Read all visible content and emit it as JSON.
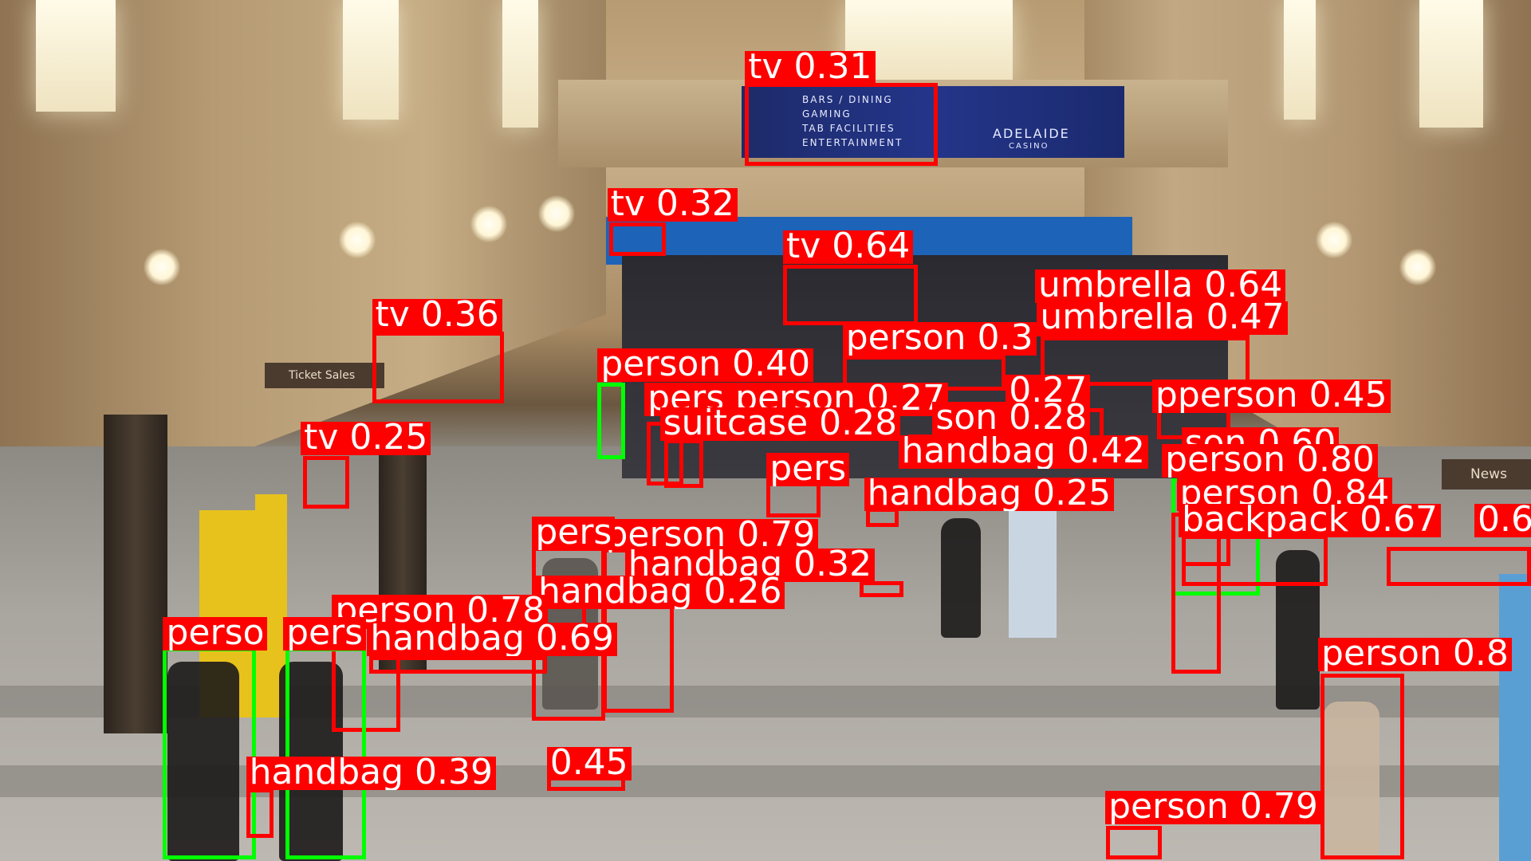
{
  "scene": {
    "signs": {
      "ticket_sales": "Ticket Sales",
      "news": "News",
      "banner_lines": [
        "BARS / DINING",
        "GAMING",
        "TAB FACILITIES",
        "ENTERTAINMENT"
      ],
      "banner_brand": "ADELAIDE",
      "banner_brand_sub": "CASINO"
    }
  },
  "colors": {
    "box": "#ff0000",
    "box_secondary": "#00ff00",
    "label_text": "#ffffff"
  },
  "detections": [
    {
      "id": "tv-031",
      "label": "tv 0.31"
    },
    {
      "id": "tv-032",
      "label": "tv 0.32"
    },
    {
      "id": "tv-064",
      "label": "tv 0.64"
    },
    {
      "id": "tv-036",
      "label": "tv 0.36"
    },
    {
      "id": "tv-025",
      "label": "tv 0.25"
    },
    {
      "id": "umbrella-064",
      "label": "umbrella 0.64"
    },
    {
      "id": "umbrella-047",
      "label": "umbrella 0.47"
    },
    {
      "id": "person-a",
      "label": "person 0.3"
    },
    {
      "id": "person-040",
      "label": "person 0.40"
    },
    {
      "id": "person-027",
      "label": "pers person 0.27"
    },
    {
      "id": "person-027b",
      "label": "0.27"
    },
    {
      "id": "pperson-045",
      "label": "pperson 0.45"
    },
    {
      "id": "suitcase-028",
      "label": "suitcase 0.28"
    },
    {
      "id": "person-028",
      "label": "son 0.28"
    },
    {
      "id": "handbag-042",
      "label": "handbag 0.42"
    },
    {
      "id": "person-060",
      "label": "son 0.60"
    },
    {
      "id": "person-080",
      "label": "person 0.80"
    },
    {
      "id": "person-b",
      "label": "pers"
    },
    {
      "id": "handbag-025",
      "label": "handbag 0.25"
    },
    {
      "id": "person-084",
      "label": "person 0.84"
    },
    {
      "id": "backpack-067",
      "label": "backpack 0.67"
    },
    {
      "id": "person-c",
      "label": "0.6"
    },
    {
      "id": "person-079a",
      "label": "person 0.79"
    },
    {
      "id": "person-d",
      "label": "pers"
    },
    {
      "id": "handbag-032",
      "label": "handbag 0.32"
    },
    {
      "id": "handbag-026",
      "label": "handbag 0.26"
    },
    {
      "id": "person-078",
      "label": "person 0.78"
    },
    {
      "id": "handbag-069",
      "label": "handbag 0.69"
    },
    {
      "id": "person-e",
      "label": "perso"
    },
    {
      "id": "person-f",
      "label": "pers"
    },
    {
      "id": "person-08",
      "label": "person 0.8"
    },
    {
      "id": "handbag-039",
      "label": "handbag 0.39"
    },
    {
      "id": "person-045",
      "label": "0.45"
    },
    {
      "id": "person-079b",
      "label": "person 0.79"
    }
  ]
}
